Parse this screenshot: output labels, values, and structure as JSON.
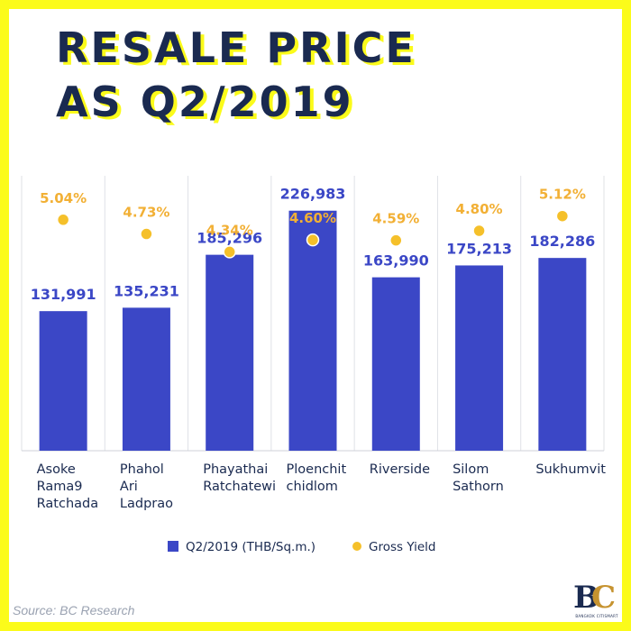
{
  "chart_data": {
    "type": "bar",
    "title": [
      "RESALE PRICE",
      "AS Q2/2019"
    ],
    "categories": [
      [
        "Asoke",
        "Rama9",
        "Ratchada"
      ],
      [
        "Phahol",
        "Ari",
        "Ladprao"
      ],
      [
        "Phayathai",
        "Ratchatewi"
      ],
      [
        "Ploenchit",
        "chidlom"
      ],
      [
        "Riverside"
      ],
      [
        "Silom",
        "Sathorn"
      ],
      [
        "Sukhumvit"
      ]
    ],
    "series": [
      {
        "name": "Q2/2019 (THB/Sq.m.)",
        "type": "bar",
        "values": [
          131991,
          135231,
          185296,
          226983,
          163990,
          175213,
          182286
        ],
        "labels": [
          "131,991",
          "135,231",
          "185,296",
          "226,983",
          "163,990",
          "175,213",
          "182,286"
        ],
        "color": "#3b47c6",
        "label_color": "#3b47c6"
      },
      {
        "name": "Gross Yield",
        "type": "scatter",
        "values": [
          5.04,
          4.73,
          4.34,
          4.6,
          4.59,
          4.8,
          5.12
        ],
        "labels": [
          "5.04%",
          "4.73%",
          "4.34%",
          "4.60%",
          "4.59%",
          "4.80%",
          "5.12%"
        ],
        "color": "#f5c02a",
        "label_color": "#f2b035"
      }
    ],
    "ylim_bar": [
      0,
      260000
    ],
    "ylim_yield": [
      0,
      6
    ],
    "grid": "vertical separators",
    "legend_position": "bottom"
  },
  "source": "Source: BC Research",
  "logo": {
    "letters": [
      "B",
      "C"
    ],
    "caption": "BANGKOK CITISMART"
  },
  "colors": {
    "frame": "#fbfb1a",
    "title": "#1a2a50",
    "bar": "#3b47c6",
    "dot": "#f5c02a"
  }
}
